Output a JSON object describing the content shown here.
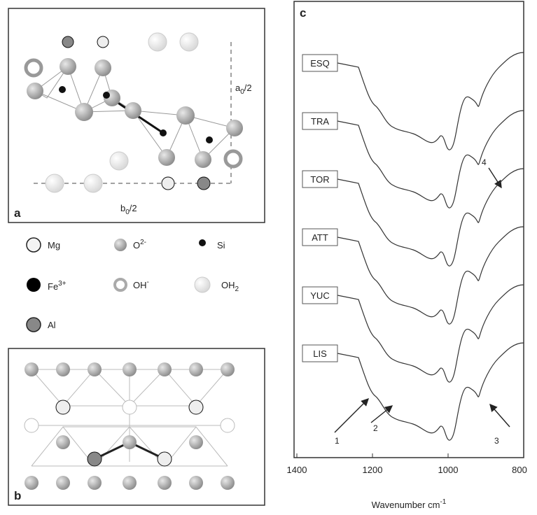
{
  "panel_a": {
    "letter": "a",
    "a_label": {
      "text": "a",
      "sub": "0",
      "rest": "/2"
    },
    "b_label": {
      "text": "b",
      "sub": "0",
      "rest": "/2"
    }
  },
  "legend": [
    {
      "text": "Mg"
    },
    {
      "text": "O",
      "sup": "2-"
    },
    {
      "text": "Si"
    },
    {
      "text": "Fe",
      "sup": "3+"
    },
    {
      "text": "OH",
      "sup": "-"
    },
    {
      "text": "OH",
      "sub": "2"
    },
    {
      "text": "Al"
    }
  ],
  "panel_b": {
    "letter": "b"
  },
  "chart_data": {
    "type": "spectra",
    "letter": "c",
    "series_labels": [
      "ESQ",
      "TRA",
      "TOR",
      "ATT",
      "YUC",
      "LIS"
    ],
    "annotations": [
      "1",
      "2",
      "3",
      "4"
    ],
    "xlabel": {
      "text": "Wavenumber cm",
      "sup": "-1"
    },
    "xlim": [
      1400,
      800
    ],
    "xticks": [
      1400,
      1200,
      1000,
      800
    ]
  }
}
